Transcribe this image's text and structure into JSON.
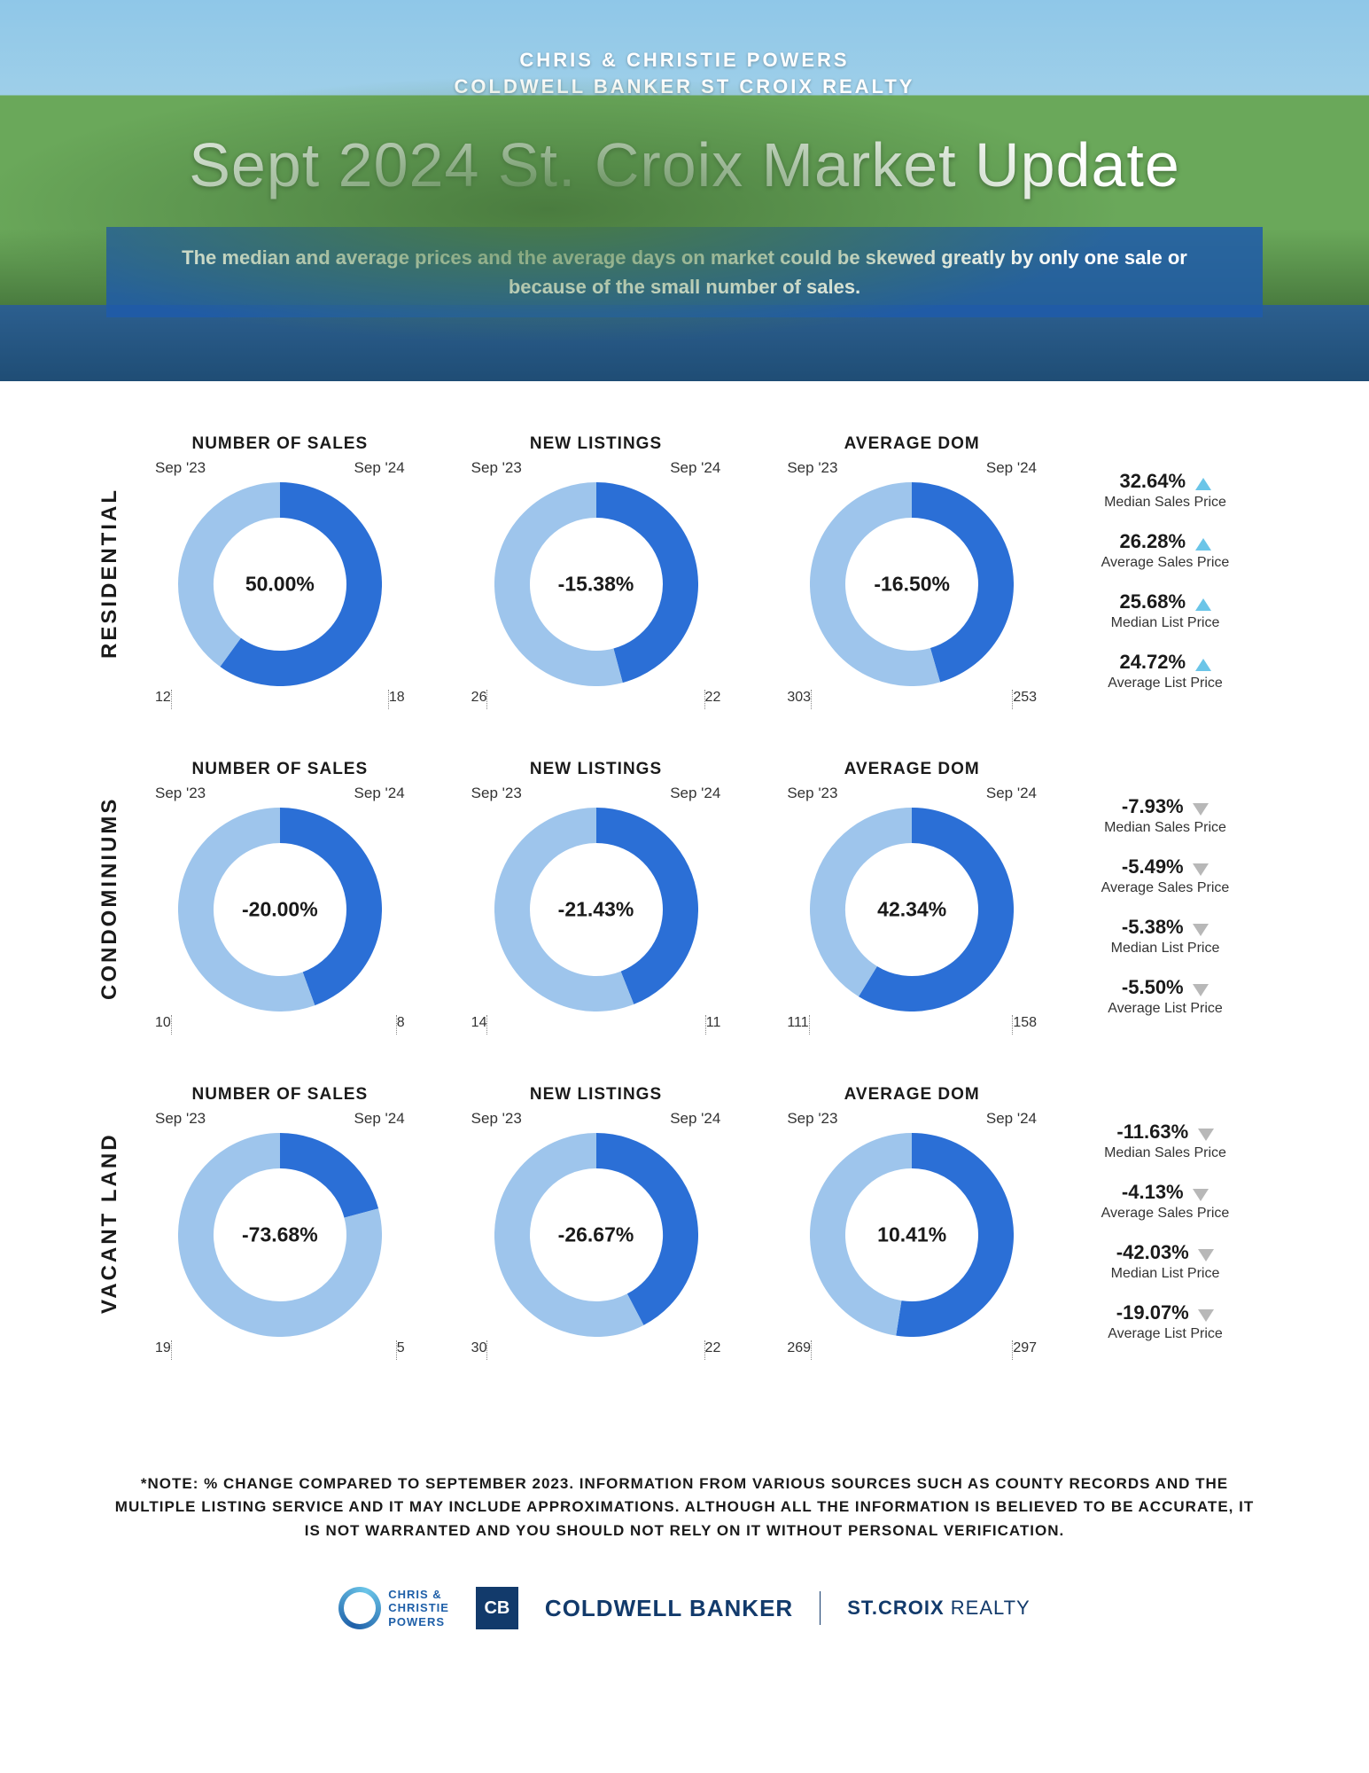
{
  "colors": {
    "donut_prev": "#9ec5ec",
    "donut_curr": "#2b6fd6",
    "arrow_up": "#6bc5e8",
    "arrow_down": "#b8b8b8",
    "text": "#1a1a1a",
    "cb_blue": "#123a6b"
  },
  "hero": {
    "pre1": "CHRIS & CHRISTIE POWERS",
    "pre2": "COLDWELL BANKER ST CROIX REALTY",
    "title": "Sept 2024 St. Croix Market Update",
    "banner": "The median and average prices and  the average days on market could be skewed greatly by only one sale or because of the small number of sales."
  },
  "period_prev": "Sep '23",
  "period_curr": "Sep '24",
  "donut_size": 230,
  "donut_thickness": 40,
  "categories": [
    {
      "label": "RESIDENTIAL",
      "charts": [
        {
          "title": "NUMBER OF SALES",
          "prev": 12,
          "curr": 18,
          "pct": "50.00%"
        },
        {
          "title": "NEW LISTINGS",
          "prev": 26,
          "curr": 22,
          "pct": "-15.38%"
        },
        {
          "title": "AVERAGE DOM",
          "prev": 303,
          "curr": 253,
          "pct": "-16.50%"
        }
      ],
      "stats": [
        {
          "pct": "32.64%",
          "dir": "up",
          "label": "Median Sales Price"
        },
        {
          "pct": "26.28%",
          "dir": "up",
          "label": "Average Sales Price"
        },
        {
          "pct": "25.68%",
          "dir": "up",
          "label": "Median List Price"
        },
        {
          "pct": "24.72%",
          "dir": "up",
          "label": "Average List Price"
        }
      ]
    },
    {
      "label": "CONDOMINIUMS",
      "charts": [
        {
          "title": "NUMBER OF SALES",
          "prev": 10,
          "curr": 8,
          "pct": "-20.00%"
        },
        {
          "title": "NEW LISTINGS",
          "prev": 14,
          "curr": 11,
          "pct": "-21.43%"
        },
        {
          "title": "AVERAGE DOM",
          "prev": 111,
          "curr": 158,
          "pct": "42.34%"
        }
      ],
      "stats": [
        {
          "pct": "-7.93%",
          "dir": "down",
          "label": "Median Sales Price"
        },
        {
          "pct": "-5.49%",
          "dir": "down",
          "label": "Average Sales Price"
        },
        {
          "pct": "-5.38%",
          "dir": "down",
          "label": "Median List Price"
        },
        {
          "pct": "-5.50%",
          "dir": "down",
          "label": "Average List Price"
        }
      ]
    },
    {
      "label": "VACANT LAND",
      "charts": [
        {
          "title": "NUMBER OF SALES",
          "prev": 19,
          "curr": 5,
          "pct": "-73.68%"
        },
        {
          "title": "NEW LISTINGS",
          "prev": 30,
          "curr": 22,
          "pct": "-26.67%"
        },
        {
          "title": "AVERAGE DOM",
          "prev": 269,
          "curr": 297,
          "pct": "10.41%"
        }
      ],
      "stats": [
        {
          "pct": "-11.63%",
          "dir": "down",
          "label": "Median Sales Price"
        },
        {
          "pct": "-4.13%",
          "dir": "down",
          "label": "Average Sales Price"
        },
        {
          "pct": "-42.03%",
          "dir": "down",
          "label": "Median List Price"
        },
        {
          "pct": "-19.07%",
          "dir": "down",
          "label": "Average List Price"
        }
      ]
    }
  ],
  "note": "*NOTE: % CHANGE COMPARED TO SEPTEMBER 2023. INFORMATION FROM VARIOUS SOURCES SUCH AS COUNTY RECORDS AND THE MULTIPLE LISTING SERVICE AND IT MAY INCLUDE APPROXIMATIONS. ALTHOUGH ALL THE INFORMATION IS BELIEVED TO BE ACCURATE, IT IS NOT WARRANTED AND YOU SHOULD NOT RELY ON IT WITHOUT PERSONAL VERIFICATION.",
  "footer": {
    "cp_line1": "CHRIS &",
    "cp_line2": "CHRISTIE",
    "cp_line3": "POWERS",
    "cb_badge": "CB",
    "cb_text": "COLDWELL BANKER",
    "sc_bold": "ST.CROIX",
    "sc_thin": " REALTY"
  }
}
